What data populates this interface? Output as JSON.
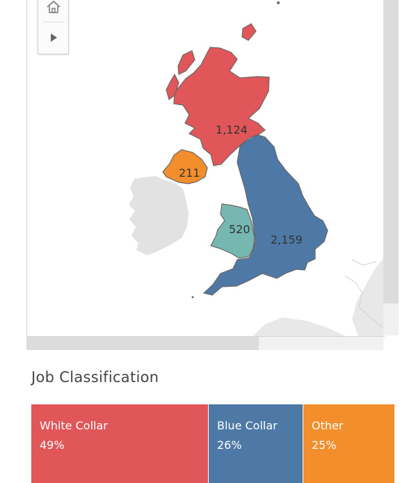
{
  "map": {
    "regions": [
      {
        "name": "Scotland",
        "value": "1,124",
        "color": "#e15759"
      },
      {
        "name": "Northern Ireland",
        "value": "211",
        "color": "#f28e2b"
      },
      {
        "name": "Wales",
        "value": "520",
        "color": "#76b7b2"
      },
      {
        "name": "England",
        "value": "2,159",
        "color": "#4e79a7"
      }
    ],
    "base_land_color": "#e2e2e2",
    "border_color": "#666666"
  },
  "toolbar": {
    "home_icon": "home-icon",
    "play_icon": "play-icon"
  },
  "job_classification": {
    "title": "Job Classification",
    "tiles": [
      {
        "label": "White Collar",
        "percent": "49%",
        "color": "#e15759"
      },
      {
        "label": "Blue Collar",
        "percent": "26%",
        "color": "#4e79a7"
      },
      {
        "label": "Other",
        "percent": "25%",
        "color": "#f28e2b"
      }
    ]
  }
}
